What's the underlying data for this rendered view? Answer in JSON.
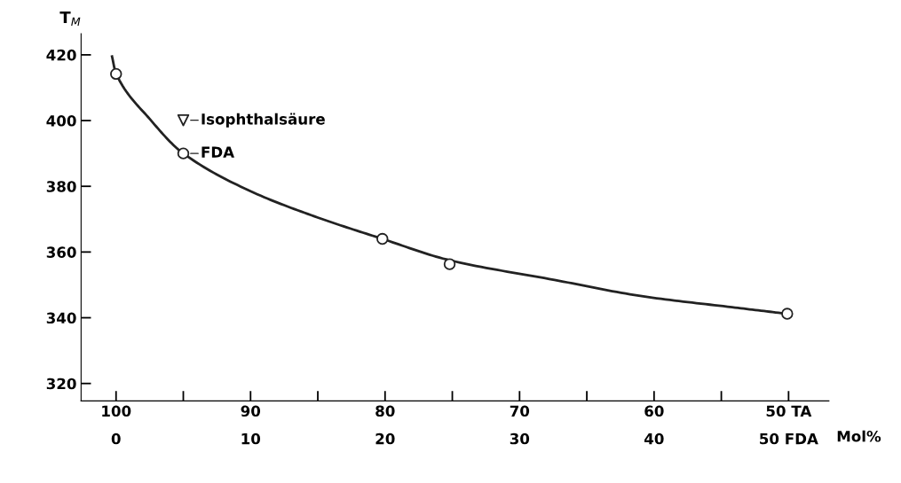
{
  "chart_data": {
    "type": "scatter",
    "ylabel": "T$_{M}$",
    "xlabel": "Mol%",
    "xlim": [
      102.6,
      47
    ],
    "ylim": [
      314.7,
      426.4
    ],
    "xticks": [
      100,
      {
        "value": 95,
        "label": null
      },
      90,
      {
        "value": 85,
        "label": null
      },
      80,
      {
        "value": 75,
        "label": null
      },
      70,
      {
        "value": 65,
        "label": null
      },
      60,
      {
        "value": 55,
        "label": null
      },
      {
        "value": 50,
        "label": "50 TA"
      }
    ],
    "x2lim": [
      -2.6,
      53
    ],
    "x2ticks": [
      0,
      10,
      20,
      30,
      40,
      {
        "value": 50,
        "label": "50 FDA"
      }
    ],
    "yticks": [
      320,
      340,
      360,
      380,
      400,
      420
    ],
    "grid": false,
    "legend": false,
    "series": [
      {
        "type": "line",
        "color": "#222222",
        "marker": "none",
        "line_style": "solid",
        "x": [
          100.3,
          100,
          97.5,
          95,
          90,
          85,
          80.2,
          75.2,
          67.4,
          60.8,
          54.2,
          50.1
        ],
        "values": [
          419.5,
          414.2,
          400.5,
          390,
          378.5,
          370.5,
          364,
          357.5,
          351.5,
          346.5,
          343.2,
          341.2
        ]
      },
      {
        "color": "#222222",
        "marker": "circle",
        "x": [
          100,
          95,
          80.2,
          75.2,
          50.1
        ],
        "values": [
          414.2,
          390,
          364,
          356.3,
          341.2
        ]
      },
      {
        "color": "#222222",
        "marker": "triangle",
        "x": [
          95
        ],
        "values": [
          400.1
        ]
      }
    ],
    "annotations": [
      {
        "text": "Isophthalsäure",
        "x": 95,
        "y": 400.1
      },
      {
        "text": "FDA",
        "x": 95,
        "y": 390
      }
    ]
  }
}
